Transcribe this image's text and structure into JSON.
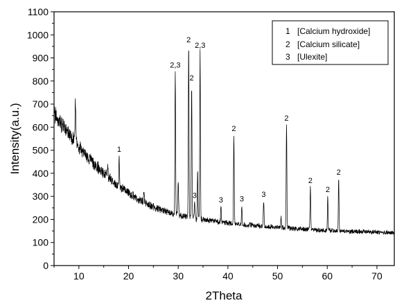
{
  "chart_data": {
    "type": "line",
    "xlabel": "2Theta",
    "ylabel": "Intensity(a.u.)",
    "xlim": [
      5,
      73.5
    ],
    "ylim": [
      0,
      1100
    ],
    "xticks": [
      10,
      20,
      30,
      40,
      50,
      60,
      70
    ],
    "yticks": [
      0,
      100,
      200,
      300,
      400,
      500,
      600,
      700,
      800,
      900,
      1000,
      1100
    ],
    "line_color": "#000000",
    "legend": {
      "placement": "top-right",
      "entries": [
        {
          "key": "1",
          "text": "[Calcium hydroxide]"
        },
        {
          "key": "2",
          "text": "[Calcium silicate]"
        },
        {
          "key": "3",
          "text": "[Ulexite]"
        }
      ]
    },
    "background_curve": [
      [
        5,
        660
      ],
      [
        7,
        600
      ],
      [
        9,
        540
      ],
      [
        11,
        490
      ],
      [
        13,
        440
      ],
      [
        15,
        400
      ],
      [
        17,
        365
      ],
      [
        19,
        330
      ],
      [
        21,
        300
      ],
      [
        23,
        275
      ],
      [
        25,
        255
      ],
      [
        27,
        238
      ],
      [
        29,
        225
      ],
      [
        31,
        215
      ],
      [
        33,
        205
      ],
      [
        35,
        198
      ],
      [
        37,
        192
      ],
      [
        40,
        185
      ],
      [
        43,
        178
      ],
      [
        46,
        172
      ],
      [
        50,
        165
      ],
      [
        55,
        158
      ],
      [
        60,
        152
      ],
      [
        65,
        148
      ],
      [
        70,
        145
      ],
      [
        73.5,
        142
      ]
    ],
    "peaks": [
      {
        "x": 9.3,
        "y": 710
      },
      {
        "x": 12.2,
        "y": 475
      },
      {
        "x": 15.8,
        "y": 430
      },
      {
        "x": 18.1,
        "y": 475,
        "label": "1"
      },
      {
        "x": 23.1,
        "y": 325
      },
      {
        "x": 29.4,
        "y": 840,
        "label": "2,3"
      },
      {
        "x": 30.0,
        "y": 370
      },
      {
        "x": 32.1,
        "y": 950,
        "label": "2"
      },
      {
        "x": 32.7,
        "y": 785,
        "label": "2"
      },
      {
        "x": 33.3,
        "y": 275,
        "label": "3"
      },
      {
        "x": 33.9,
        "y": 405
      },
      {
        "x": 34.4,
        "y": 925,
        "label": "2,3"
      },
      {
        "x": 38.6,
        "y": 255,
        "label": "3"
      },
      {
        "x": 41.2,
        "y": 565,
        "label": "2"
      },
      {
        "x": 42.8,
        "y": 260,
        "label": "3"
      },
      {
        "x": 47.2,
        "y": 280,
        "label": "3"
      },
      {
        "x": 50.7,
        "y": 215
      },
      {
        "x": 51.8,
        "y": 610,
        "label": "2"
      },
      {
        "x": 56.6,
        "y": 340,
        "label": "2"
      },
      {
        "x": 60.1,
        "y": 300,
        "label": "2"
      },
      {
        "x": 62.3,
        "y": 375,
        "label": "2"
      }
    ]
  }
}
